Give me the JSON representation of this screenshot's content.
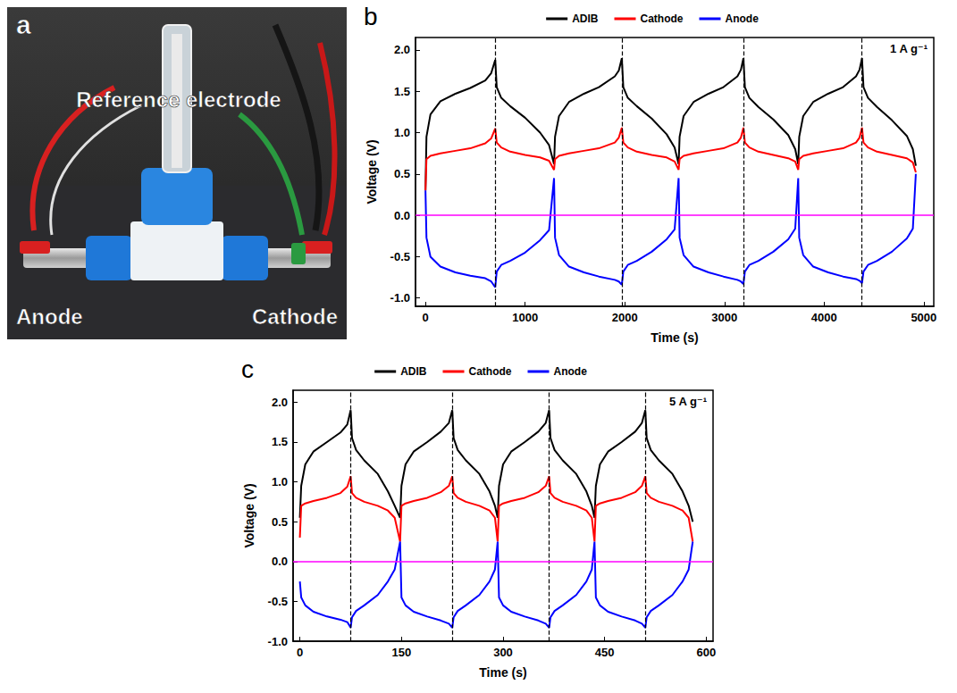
{
  "photo": {
    "panel": "a",
    "labels": {
      "top": "Reference electrode",
      "left": "Anode",
      "right": "Cathode"
    }
  },
  "chart_data": [
    {
      "type": "line",
      "panel": "b",
      "annotation": "1 A g⁻¹",
      "x_label": "Time (s)",
      "y_label": "Voltage (V)",
      "x": [
        0,
        10,
        50,
        150,
        300,
        450,
        600,
        660,
        700,
        715,
        760,
        850,
        1000,
        1150,
        1240,
        1290,
        1300,
        1340,
        1440,
        1590,
        1740,
        1900,
        1940,
        1970,
        1985,
        2030,
        2120,
        2270,
        2420,
        2500,
        2540,
        2550,
        2590,
        2690,
        2840,
        2990,
        3130,
        3165,
        3190,
        3205,
        3250,
        3340,
        3490,
        3640,
        3710,
        3740,
        3750,
        3790,
        3890,
        4040,
        4190,
        4320,
        4355,
        4380,
        4395,
        4440,
        4530,
        4680,
        4830,
        4890,
        4920
      ],
      "series": [
        {
          "name": "ADIB",
          "color": "#000000",
          "values": [
            0.3,
            0.95,
            1.22,
            1.38,
            1.47,
            1.54,
            1.63,
            1.72,
            1.88,
            1.55,
            1.42,
            1.32,
            1.18,
            1.0,
            0.85,
            0.62,
            0.95,
            1.2,
            1.37,
            1.47,
            1.55,
            1.68,
            1.75,
            1.9,
            1.55,
            1.42,
            1.32,
            1.17,
            0.98,
            0.82,
            0.62,
            0.95,
            1.2,
            1.37,
            1.47,
            1.55,
            1.68,
            1.76,
            1.9,
            1.55,
            1.42,
            1.31,
            1.16,
            0.97,
            0.8,
            0.62,
            0.95,
            1.2,
            1.37,
            1.47,
            1.55,
            1.68,
            1.76,
            1.9,
            1.55,
            1.42,
            1.31,
            1.15,
            0.96,
            0.8,
            0.6
          ]
        },
        {
          "name": "Cathode",
          "color": "#ff0000",
          "values": [
            0.3,
            0.68,
            0.72,
            0.75,
            0.78,
            0.81,
            0.87,
            0.93,
            1.05,
            0.88,
            0.82,
            0.77,
            0.73,
            0.7,
            0.66,
            0.55,
            0.68,
            0.72,
            0.75,
            0.78,
            0.81,
            0.88,
            0.94,
            1.06,
            0.88,
            0.82,
            0.77,
            0.73,
            0.7,
            0.65,
            0.55,
            0.68,
            0.72,
            0.75,
            0.78,
            0.81,
            0.88,
            0.94,
            1.06,
            0.88,
            0.82,
            0.77,
            0.73,
            0.69,
            0.65,
            0.55,
            0.68,
            0.72,
            0.75,
            0.78,
            0.81,
            0.88,
            0.94,
            1.06,
            0.88,
            0.82,
            0.77,
            0.73,
            0.69,
            0.64,
            0.52
          ]
        },
        {
          "name": "Anode",
          "color": "#0000ff",
          "values": [
            0.3,
            -0.27,
            -0.5,
            -0.62,
            -0.69,
            -0.73,
            -0.76,
            -0.8,
            -0.87,
            -0.68,
            -0.6,
            -0.55,
            -0.45,
            -0.3,
            -0.18,
            0.45,
            -0.27,
            -0.48,
            -0.62,
            -0.69,
            -0.74,
            -0.78,
            -0.8,
            -0.84,
            -0.68,
            -0.6,
            -0.55,
            -0.44,
            -0.29,
            -0.17,
            0.45,
            -0.27,
            -0.48,
            -0.62,
            -0.69,
            -0.74,
            -0.78,
            -0.8,
            -0.83,
            -0.68,
            -0.6,
            -0.55,
            -0.44,
            -0.29,
            -0.16,
            0.45,
            -0.27,
            -0.48,
            -0.62,
            -0.69,
            -0.74,
            -0.77,
            -0.79,
            -0.82,
            -0.68,
            -0.6,
            -0.55,
            -0.44,
            -0.28,
            -0.16,
            0.5
          ]
        }
      ],
      "xlim": [
        -100,
        5100
      ],
      "xticks": [
        0,
        1000,
        2000,
        3000,
        4000,
        5000
      ],
      "ylim": [
        -1.1,
        2.15
      ],
      "yticks": [
        {
          "value": -1,
          "label": "-1.0"
        },
        -0.5,
        {
          "value": 0,
          "label": "0.0"
        },
        0.5,
        {
          "value": 1,
          "label": "1.0"
        },
        1.5,
        {
          "value": 2,
          "label": "2.0"
        }
      ],
      "hline": {
        "value": 0,
        "color": "#ff00ff"
      },
      "vlines": [
        700,
        1970,
        3190,
        4380
      ],
      "legend": "top",
      "grid": false
    },
    {
      "type": "line",
      "panel": "c",
      "annotation": "5 A g⁻¹",
      "x_label": "Time (s)",
      "y_label": "Voltage (V)",
      "x": [
        0,
        2,
        8,
        20,
        40,
        60,
        70,
        75,
        77,
        83,
        95,
        115,
        130,
        140,
        148,
        150,
        156,
        168,
        188,
        208,
        220,
        225,
        227,
        233,
        245,
        265,
        280,
        288,
        292,
        294,
        300,
        312,
        332,
        352,
        363,
        368,
        370,
        376,
        388,
        408,
        423,
        431,
        435,
        437,
        443,
        455,
        475,
        495,
        505,
        510,
        512,
        518,
        530,
        550,
        565,
        574,
        580
      ],
      "series": [
        {
          "name": "ADIB",
          "color": "#000000",
          "values": [
            0.55,
            0.95,
            1.22,
            1.38,
            1.5,
            1.62,
            1.72,
            1.9,
            1.55,
            1.4,
            1.27,
            1.1,
            0.88,
            0.7,
            0.55,
            0.95,
            1.22,
            1.38,
            1.5,
            1.63,
            1.74,
            1.9,
            1.55,
            1.4,
            1.27,
            1.1,
            0.88,
            0.7,
            0.55,
            0.95,
            1.22,
            1.38,
            1.5,
            1.63,
            1.74,
            1.9,
            1.55,
            1.4,
            1.27,
            1.1,
            0.88,
            0.7,
            0.55,
            0.95,
            1.22,
            1.38,
            1.5,
            1.63,
            1.74,
            1.9,
            1.55,
            1.4,
            1.27,
            1.1,
            0.88,
            0.7,
            0.5
          ]
        },
        {
          "name": "Cathode",
          "color": "#ff0000",
          "values": [
            0.3,
            0.7,
            0.73,
            0.76,
            0.8,
            0.86,
            0.94,
            1.07,
            0.86,
            0.8,
            0.75,
            0.7,
            0.64,
            0.55,
            0.25,
            0.7,
            0.73,
            0.76,
            0.8,
            0.87,
            0.95,
            1.07,
            0.86,
            0.8,
            0.75,
            0.7,
            0.64,
            0.55,
            0.25,
            0.7,
            0.73,
            0.76,
            0.8,
            0.87,
            0.95,
            1.07,
            0.86,
            0.8,
            0.75,
            0.7,
            0.64,
            0.55,
            0.25,
            0.7,
            0.73,
            0.76,
            0.8,
            0.87,
            0.95,
            1.07,
            0.86,
            0.8,
            0.75,
            0.7,
            0.64,
            0.55,
            0.25
          ]
        },
        {
          "name": "Anode",
          "color": "#0000ff",
          "values": [
            -0.25,
            -0.45,
            -0.55,
            -0.63,
            -0.69,
            -0.73,
            -0.76,
            -0.83,
            -0.7,
            -0.62,
            -0.55,
            -0.42,
            -0.25,
            -0.1,
            0.25,
            -0.45,
            -0.55,
            -0.63,
            -0.69,
            -0.74,
            -0.78,
            -0.83,
            -0.7,
            -0.62,
            -0.55,
            -0.42,
            -0.25,
            -0.1,
            0.25,
            -0.45,
            -0.55,
            -0.63,
            -0.69,
            -0.74,
            -0.78,
            -0.83,
            -0.7,
            -0.62,
            -0.55,
            -0.42,
            -0.25,
            -0.1,
            0.25,
            -0.45,
            -0.55,
            -0.63,
            -0.69,
            -0.74,
            -0.78,
            -0.83,
            -0.7,
            -0.62,
            -0.55,
            -0.42,
            -0.25,
            -0.1,
            0.25
          ]
        }
      ],
      "xlim": [
        -10,
        610
      ],
      "xticks": [
        0,
        150,
        300,
        450,
        600
      ],
      "ylim": [
        -1.0,
        2.15
      ],
      "yticks": [
        {
          "value": -1,
          "label": "-1.0"
        },
        -0.5,
        {
          "value": 0,
          "label": "0.0"
        },
        0.5,
        {
          "value": 1,
          "label": "1.0"
        },
        1.5,
        {
          "value": 2,
          "label": "2.0"
        }
      ],
      "hline": {
        "value": 0,
        "color": "#ff00ff"
      },
      "vlines": [
        75,
        225,
        368,
        510
      ],
      "legend": "top",
      "grid": false
    }
  ]
}
